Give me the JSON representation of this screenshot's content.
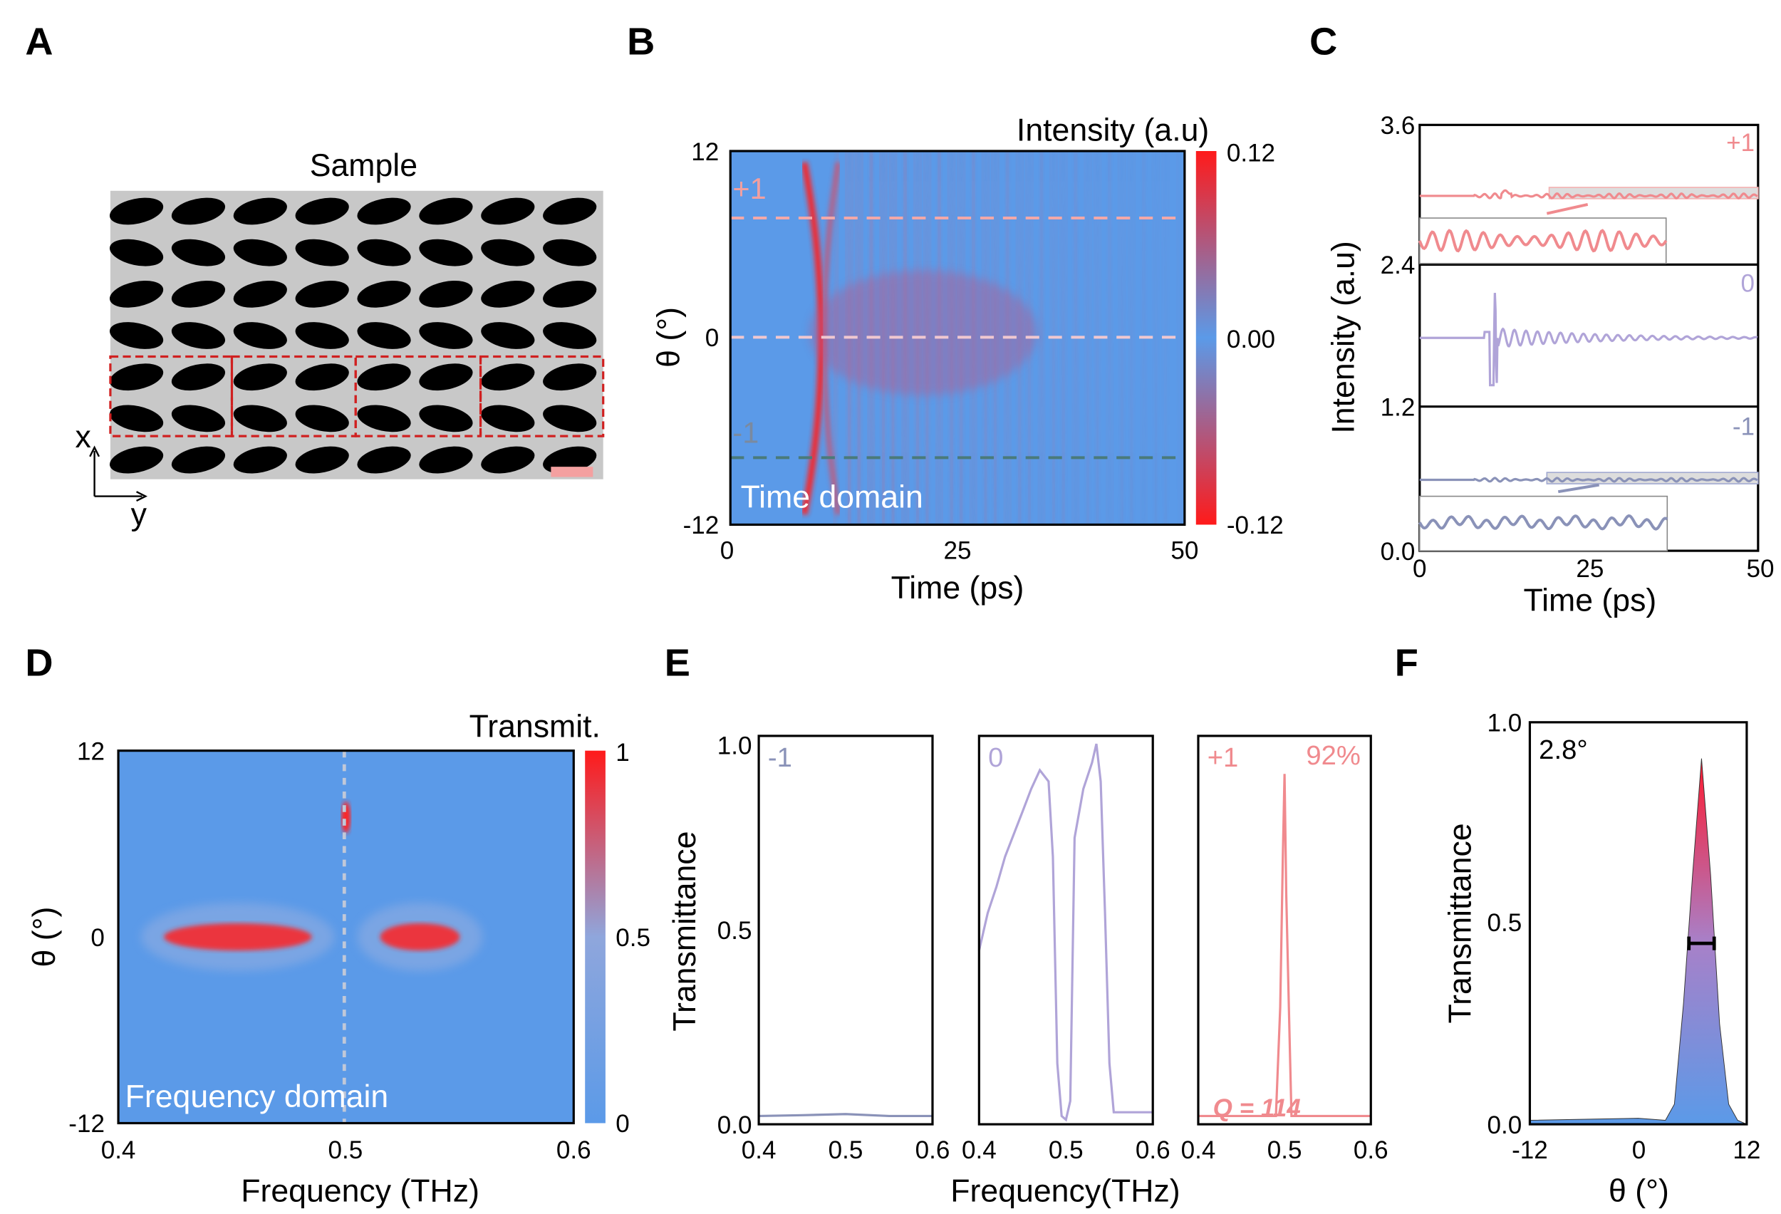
{
  "panels": {
    "A": {
      "label": "A",
      "title": "Sample",
      "axis_x": "x",
      "axis_y": "y",
      "rows": 7,
      "cols": 8,
      "colors": {
        "background": "#c8c8c8",
        "pillar": "#000000",
        "box": "#d02020"
      }
    },
    "B": {
      "label": "B",
      "annotation": "Time domain",
      "colorbar_title": "Intensity (a.u)",
      "colorbar_ticks": [
        "0.12",
        "0.00",
        "-0.12"
      ],
      "xlabel": "Time (ps)",
      "ylabel": "θ (°)",
      "xticks": [
        "0",
        "25",
        "50"
      ],
      "yticks": [
        "12",
        "0",
        "-12"
      ],
      "order_labels": [
        "+1",
        "-1"
      ]
    },
    "C": {
      "label": "C",
      "xlabel": "Time (ps)",
      "ylabel": "Intensity (a.u)",
      "xticks": [
        "0",
        "25",
        "50"
      ],
      "yticks": [
        "3.6",
        "2.4",
        "1.2",
        "0.0"
      ],
      "order_labels": [
        "+1",
        "0",
        "-1"
      ]
    },
    "D": {
      "label": "D",
      "annotation": "Frequency domain",
      "colorbar_title": "Transmit.",
      "colorbar_ticks": [
        "1",
        "0.5",
        "0"
      ],
      "xlabel": "Frequency (THz)",
      "ylabel": "θ (°)",
      "xticks": [
        "0.4",
        "0.5",
        "0.6"
      ],
      "yticks": [
        "12",
        "0",
        "-12"
      ]
    },
    "E": {
      "label": "E",
      "xlabel": "Frequency(THz)",
      "ylabel": "Transmittance",
      "yticks": [
        "1.0",
        "0.5",
        "0.0"
      ],
      "xticks": [
        "0.4",
        "0.5",
        "0.6"
      ],
      "order_labels": [
        "-1",
        "0",
        "+1"
      ],
      "peak_label": "92%",
      "q_label": "Q = 114"
    },
    "F": {
      "label": "F",
      "xlabel": "θ (°)",
      "ylabel": "Transmittance",
      "xticks": [
        "-12",
        "0",
        "12"
      ],
      "yticks": [
        "1.0",
        "0.5",
        "0.0"
      ],
      "annotation": "2.8°"
    }
  },
  "colors": {
    "plus1": "#f08a8e",
    "zero": "#b0a4d8",
    "minus1": "#8a92b8",
    "map_low": "#5b9ae8",
    "map_high": "#ff1a1a"
  },
  "chart_data": [
    {
      "panel": "B",
      "type": "heatmap",
      "xlabel": "Time (ps)",
      "ylabel": "θ (°)",
      "xlim": [
        0,
        50
      ],
      "ylim": [
        -12,
        12
      ],
      "clim": [
        -0.12,
        0.12
      ],
      "guide_lines_theta": [
        7.7,
        0,
        -7.7
      ],
      "main_pulse_time": 11
    },
    {
      "panel": "C",
      "type": "line",
      "xlabel": "Time (ps)",
      "ylabel": "Intensity (a.u)",
      "xlim": [
        0,
        50
      ],
      "ylim": [
        0,
        3.6
      ],
      "series": [
        {
          "name": "+1",
          "baseline": 3.0
        },
        {
          "name": "0",
          "baseline": 1.8,
          "pulse_time": 11
        },
        {
          "name": "-1",
          "baseline": 0.6
        }
      ]
    },
    {
      "panel": "D",
      "type": "heatmap",
      "xlabel": "Frequency (THz)",
      "ylabel": "θ (°)",
      "xlim": [
        0.4,
        0.6
      ],
      "ylim": [
        -12,
        12
      ],
      "clim": [
        0,
        1
      ],
      "guide_line_frequency": 0.5,
      "features": [
        {
          "f": [
            0.42,
            0.485
          ],
          "theta": 0
        },
        {
          "f": [
            0.515,
            0.55
          ],
          "theta": 0
        },
        {
          "f": [
            0.5,
            0.5
          ],
          "theta": 7.7
        }
      ]
    },
    {
      "panel": "E",
      "type": "line",
      "xlabel": "Frequency(THz)",
      "ylabel": "Transmittance",
      "xlim": [
        0.4,
        0.6
      ],
      "ylim": [
        0,
        1
      ],
      "series": [
        {
          "name": "-1",
          "points": [
            [
              0.4,
              0.01
            ],
            [
              0.45,
              0.012
            ],
            [
              0.5,
              0.015
            ],
            [
              0.55,
              0.01
            ],
            [
              0.6,
              0.01
            ]
          ]
        },
        {
          "name": "0",
          "points": [
            [
              0.4,
              0.45
            ],
            [
              0.41,
              0.55
            ],
            [
              0.42,
              0.62
            ],
            [
              0.43,
              0.7
            ],
            [
              0.44,
              0.76
            ],
            [
              0.45,
              0.82
            ],
            [
              0.46,
              0.88
            ],
            [
              0.47,
              0.93
            ],
            [
              0.48,
              0.9
            ],
            [
              0.485,
              0.7
            ],
            [
              0.49,
              0.15
            ],
            [
              0.495,
              0.01
            ],
            [
              0.5,
              0.0
            ],
            [
              0.505,
              0.05
            ],
            [
              0.51,
              0.75
            ],
            [
              0.52,
              0.88
            ],
            [
              0.53,
              0.95
            ],
            [
              0.535,
              1.0
            ],
            [
              0.54,
              0.9
            ],
            [
              0.545,
              0.55
            ],
            [
              0.55,
              0.15
            ],
            [
              0.555,
              0.02
            ],
            [
              0.6,
              0.02
            ]
          ]
        },
        {
          "name": "+1",
          "points": [
            [
              0.4,
              0.01
            ],
            [
              0.49,
              0.01
            ],
            [
              0.495,
              0.3
            ],
            [
              0.498,
              0.7
            ],
            [
              0.5,
              0.92
            ],
            [
              0.502,
              0.6
            ],
            [
              0.505,
              0.3
            ],
            [
              0.508,
              0.01
            ],
            [
              0.6,
              0.01
            ]
          ]
        }
      ],
      "peak": 0.92,
      "Q": 114
    },
    {
      "panel": "F",
      "type": "area",
      "xlabel": "θ (°)",
      "ylabel": "Transmittance",
      "xlim": [
        -12,
        12
      ],
      "ylim": [
        0,
        1
      ],
      "points": [
        [
          -12,
          0.01
        ],
        [
          0,
          0.015
        ],
        [
          3,
          0.01
        ],
        [
          4,
          0.05
        ],
        [
          5,
          0.3
        ],
        [
          6,
          0.62
        ],
        [
          7,
          0.91
        ],
        [
          8,
          0.62
        ],
        [
          9,
          0.25
        ],
        [
          10,
          0.05
        ],
        [
          11,
          0.01
        ],
        [
          12,
          0.0
        ]
      ],
      "fwhm": 2.8,
      "fwhm_range": [
        5.6,
        8.4
      ],
      "fwhm_level": 0.45
    }
  ]
}
